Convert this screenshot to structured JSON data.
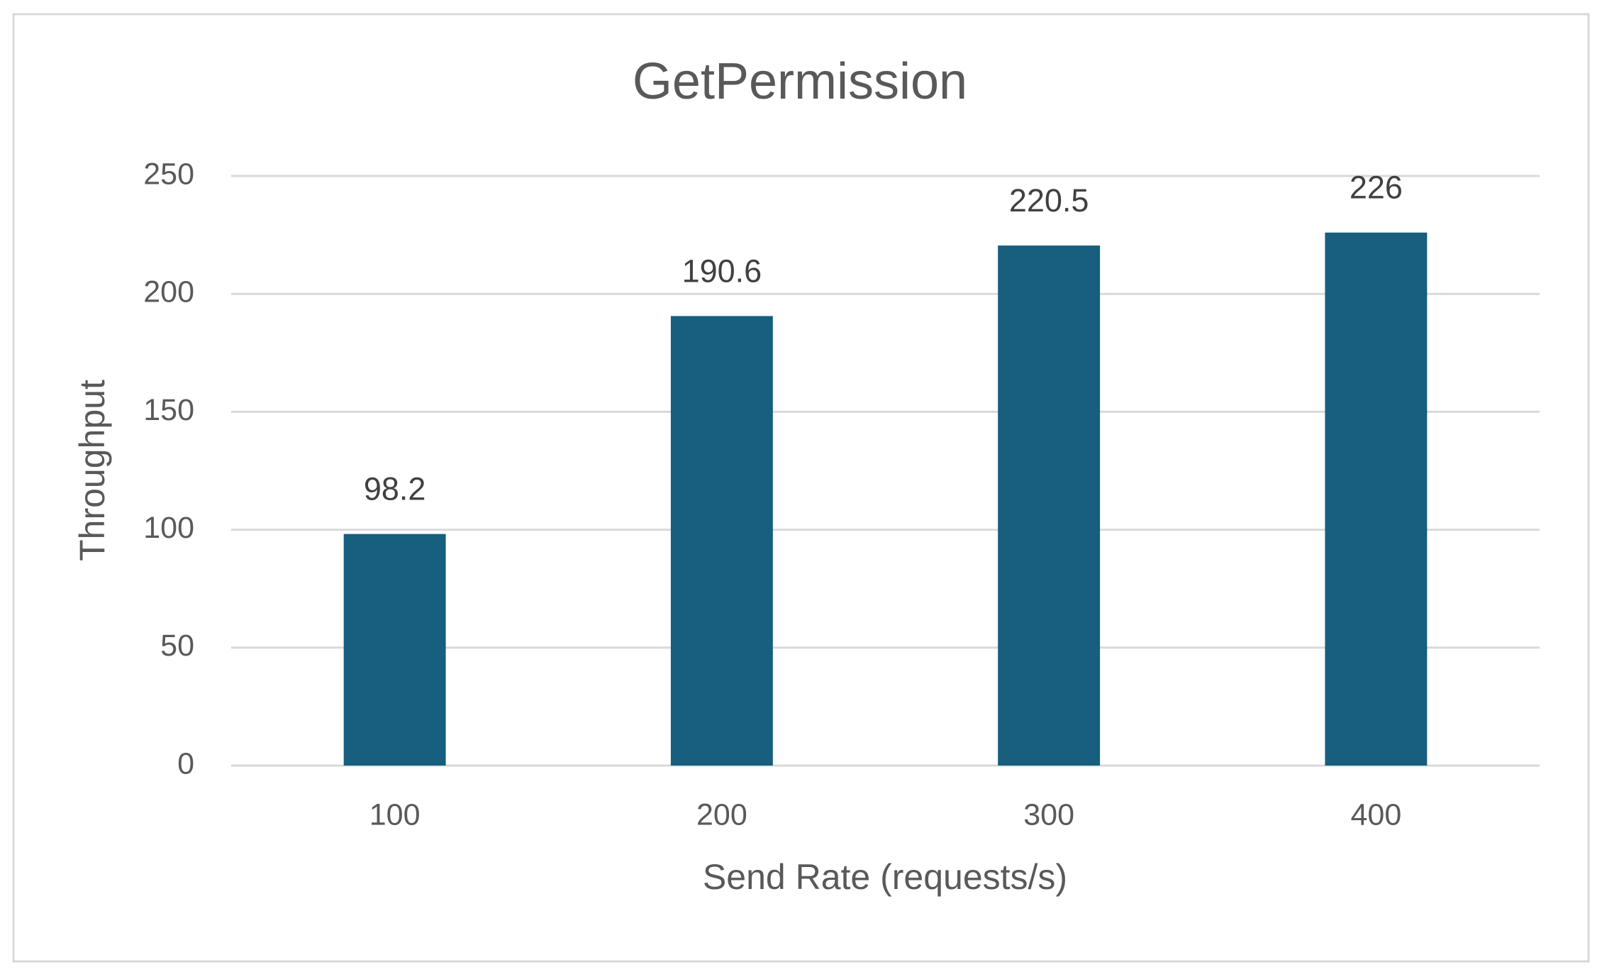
{
  "chart_data": {
    "type": "bar",
    "title": "GetPermission",
    "x_label": "Send Rate (requests/s)",
    "y_label": "Throughput",
    "categories": [
      "100",
      "200",
      "300",
      "400"
    ],
    "values": [
      98.2,
      190.6,
      220.5,
      226
    ],
    "color": "#175e7f",
    "ylim": [
      0,
      250
    ],
    "yticks": [
      0,
      50,
      100,
      150,
      200,
      250
    ],
    "grid": true
  }
}
